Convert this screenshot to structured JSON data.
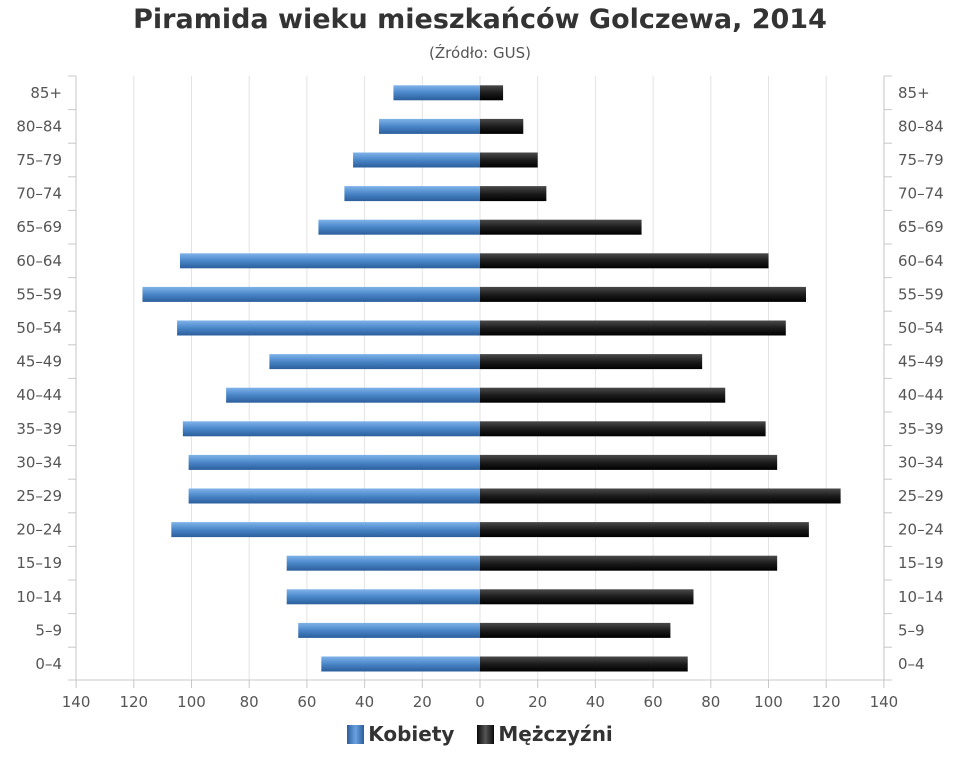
{
  "title": "Piramida wieku mieszkańców Golczewa, 2014",
  "subtitle": "(Źródło: GUS)",
  "chart_data": {
    "type": "bar",
    "orientation": "horizontal-pyramid",
    "title": "Piramida wieku mieszkańców Golczewa, 2014",
    "subtitle": "(Źródło: GUS)",
    "categories": [
      "0–4",
      "5–9",
      "10–14",
      "15–19",
      "20–24",
      "25–29",
      "30–34",
      "35–39",
      "40–44",
      "45–49",
      "50–54",
      "55–59",
      "60–64",
      "65–69",
      "70–74",
      "75–79",
      "80–84",
      "85+"
    ],
    "series": [
      {
        "name": "Kobiety",
        "side": "left",
        "color": "#4a86c8",
        "values": [
          55,
          63,
          67,
          67,
          107,
          101,
          101,
          103,
          88,
          73,
          105,
          117,
          104,
          56,
          47,
          44,
          35,
          30
        ]
      },
      {
        "name": "Mężczyźni",
        "side": "right",
        "color": "#1a1a1a",
        "values": [
          72,
          66,
          74,
          103,
          114,
          125,
          103,
          99,
          85,
          77,
          106,
          113,
          100,
          56,
          23,
          20,
          15,
          8
        ]
      }
    ],
    "x_ticks": [
      "140",
      "120",
      "100",
      "80",
      "60",
      "40",
      "20",
      "0",
      "20",
      "40",
      "60",
      "80",
      "100",
      "120",
      "140"
    ],
    "xlim": [
      -140,
      140
    ],
    "grid": true,
    "legend_position": "bottom-center"
  },
  "legend": [
    {
      "label": "Kobiety",
      "icon": "blue-swatch"
    },
    {
      "label": "Mężczyźni",
      "icon": "black-swatch"
    }
  ]
}
